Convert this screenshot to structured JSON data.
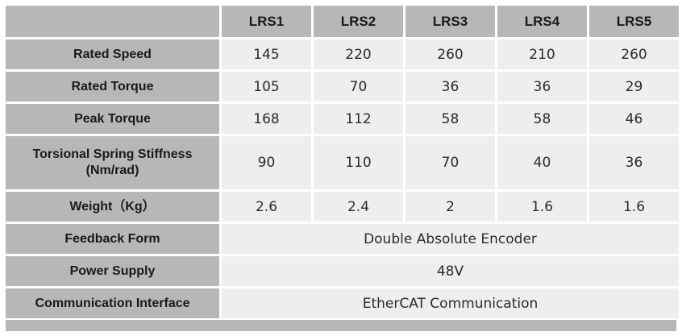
{
  "table": {
    "columns": [
      "LRS1",
      "LRS2",
      "LRS3",
      "LRS4",
      "LRS5"
    ],
    "rows": [
      {
        "label": "Rated Speed",
        "values": [
          "145",
          "220",
          "260",
          "210",
          "260"
        ]
      },
      {
        "label": "Rated Torque",
        "values": [
          "105",
          "70",
          "36",
          "36",
          "29"
        ]
      },
      {
        "label": "Peak Torque",
        "values": [
          "168",
          "112",
          "58",
          "58",
          "46"
        ]
      },
      {
        "label_line1": "Torsional Spring Stiffness",
        "label_line2": "(Nm/rad)",
        "values": [
          "90",
          "110",
          "70",
          "40",
          "36"
        ]
      },
      {
        "label": "Weight（Kg）",
        "values": [
          "2.6",
          "2.4",
          "2",
          "1.6",
          "1.6"
        ]
      }
    ],
    "merged_rows": [
      {
        "label": "Feedback Form",
        "value": "Double Absolute Encoder"
      },
      {
        "label": "Power Supply",
        "value": "48V"
      },
      {
        "label": "Communication Interface",
        "value": "EtherCAT Communication"
      }
    ]
  }
}
